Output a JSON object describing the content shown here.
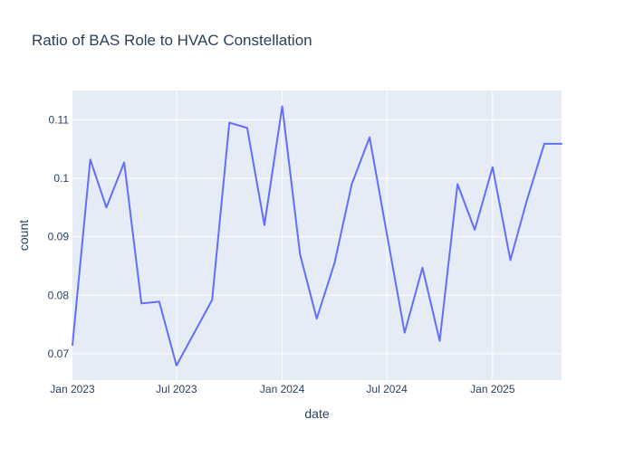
{
  "chart_data": {
    "type": "line",
    "title": "Ratio of BAS Role to HVAC Constellation",
    "xlabel": "date",
    "ylabel": "count",
    "x_range": [
      "2023-01-01",
      "2025-05-01"
    ],
    "ylim": [
      0.0655,
      0.115
    ],
    "grid": true,
    "legend": "none",
    "x_ticks": [
      {
        "date": "2023-01-01",
        "label": "Jan 2023"
      },
      {
        "date": "2023-07-01",
        "label": "Jul 2023"
      },
      {
        "date": "2024-01-01",
        "label": "Jan 2024"
      },
      {
        "date": "2024-07-01",
        "label": "Jul 2024"
      },
      {
        "date": "2025-01-01",
        "label": "Jan 2025"
      }
    ],
    "y_ticks": [
      {
        "value": 0.07,
        "label": "0.07"
      },
      {
        "value": 0.08,
        "label": "0.08"
      },
      {
        "value": 0.09,
        "label": "0.09"
      },
      {
        "value": 0.1,
        "label": "0.1"
      },
      {
        "value": 0.11,
        "label": "0.11"
      }
    ],
    "series": [
      {
        "color": "#636efa",
        "x": [
          "2023-01-01",
          "2023-02-01",
          "2023-03-01",
          "2023-04-01",
          "2023-05-01",
          "2023-06-01",
          "2023-07-01",
          "2023-08-01",
          "2023-09-01",
          "2023-10-01",
          "2023-11-01",
          "2023-12-01",
          "2024-01-01",
          "2024-02-01",
          "2024-03-01",
          "2024-04-01",
          "2024-05-01",
          "2024-06-01",
          "2024-07-01",
          "2024-08-01",
          "2024-09-01",
          "2024-10-01",
          "2024-11-01",
          "2024-12-01",
          "2025-01-01",
          "2025-02-01",
          "2025-03-01",
          "2025-04-01",
          "2025-05-01"
        ],
        "y": [
          0.0715,
          0.1032,
          0.095,
          0.1027,
          0.0786,
          0.0789,
          0.068,
          0.0736,
          0.0792,
          0.1095,
          0.1086,
          0.092,
          0.1123,
          0.087,
          0.076,
          0.0855,
          0.099,
          0.107,
          0.0905,
          0.0736,
          0.0847,
          0.0722,
          0.099,
          0.0912,
          0.1019,
          0.086,
          0.096,
          0.1059,
          0.1059
        ]
      }
    ]
  },
  "colors": {
    "plot_background": "#e5ecf6",
    "grid": "#ffffff",
    "text": "#2a3f5f"
  }
}
